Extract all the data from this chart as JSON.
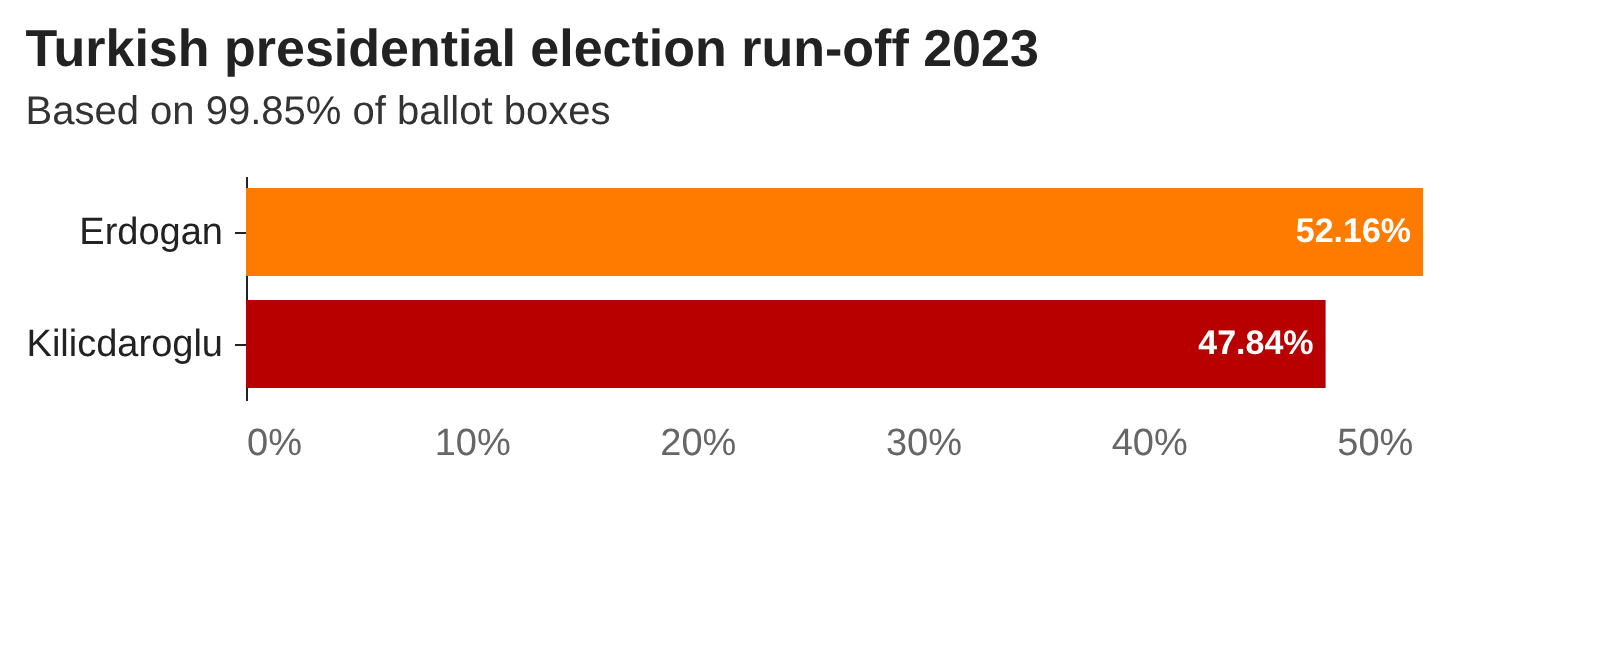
{
  "chart_data": {
    "type": "bar",
    "orientation": "horizontal",
    "title": "Turkish presidential election run-off 2023",
    "subtitle": "Based on 99.85% of ballot boxes",
    "categories": [
      "Erdogan",
      "Kilicdaroglu"
    ],
    "values": [
      52.16,
      47.84
    ],
    "colors": [
      "#ff7b00",
      "#b80000"
    ],
    "value_labels": [
      "52.16%",
      "47.84%"
    ],
    "xlim": [
      0,
      52.2
    ],
    "xticks": [
      {
        "value": 0,
        "label": "0%"
      },
      {
        "value": 10,
        "label": "10%"
      },
      {
        "value": 20,
        "label": "20%"
      },
      {
        "value": 30,
        "label": "30%"
      },
      {
        "value": 40,
        "label": "40%"
      },
      {
        "value": 50,
        "label": "50%"
      }
    ],
    "grid": false
  }
}
